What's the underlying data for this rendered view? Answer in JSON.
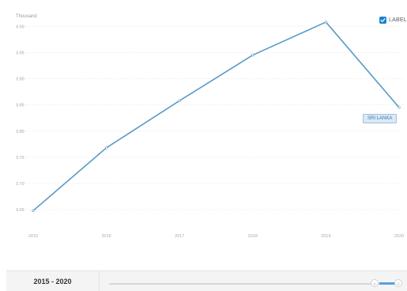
{
  "chart_data": {
    "type": "line",
    "unit_label": "Thousand",
    "x": [
      2015,
      2016,
      2017,
      2018,
      2019,
      2020
    ],
    "x_tick_labels": [
      "2015",
      "2016",
      "2017",
      "2018",
      "2019",
      "2020"
    ],
    "y_ticks": [
      3.65,
      3.7,
      3.75,
      3.8,
      3.85,
      3.9,
      3.95,
      4.0
    ],
    "y_tick_labels": [
      "3.65",
      "3.70",
      "3.75",
      "3.80",
      "3.85",
      "3.90",
      "3.95",
      "4.00"
    ],
    "ylim": [
      3.62,
      4.02
    ],
    "grid": true,
    "series": [
      {
        "name": "SRI LANKA",
        "values": [
          3.648,
          3.768,
          3.858,
          3.945,
          4.008,
          3.845
        ],
        "color": "#5a9ac7"
      }
    ]
  },
  "legend": {
    "label": "LABEL",
    "checked": true
  },
  "range_selector": {
    "label": "2015 - 2020",
    "handle_glyph": "|||",
    "range": [
      2015,
      2020
    ]
  }
}
